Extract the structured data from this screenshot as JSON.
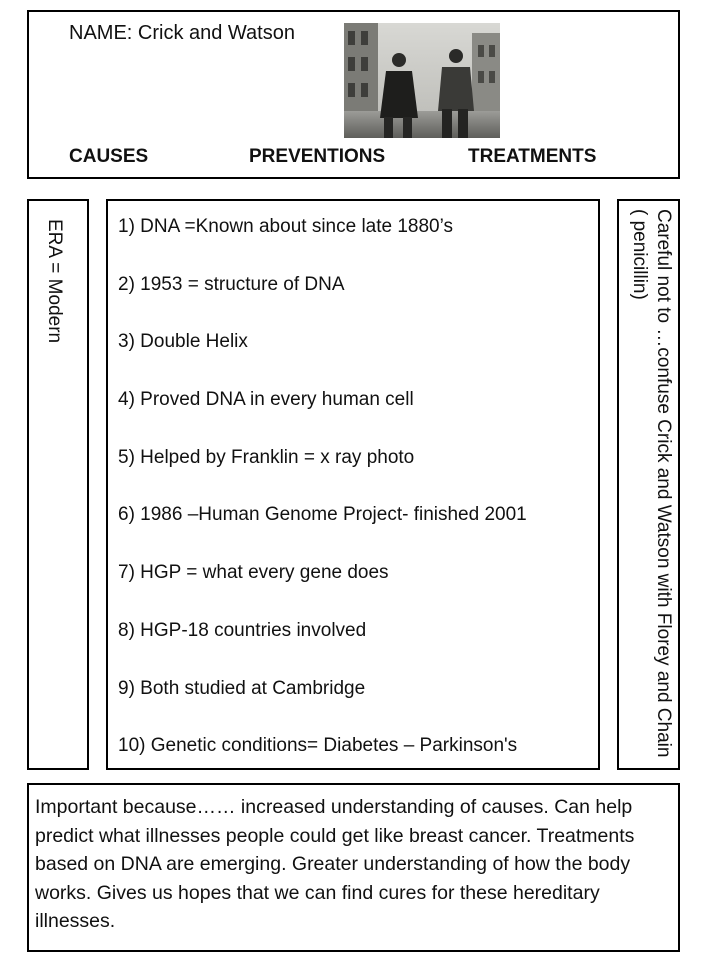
{
  "header": {
    "name": "NAME: Crick and Watson",
    "columns": [
      "CAUSES",
      "PREVENTIONS",
      "TREATMENTS"
    ]
  },
  "era": "ERA = Modern",
  "facts": [
    "1) DNA =Known about since late 1880’s",
    "2) 1953 = structure of DNA",
    "3)  Double  Helix",
    "4) Proved  DNA in every human cell",
    "5) Helped by Franklin = x ray photo",
    "6) 1986 –Human Genome Project- finished 2001",
    "7) HGP = what every gene does",
    "8) HGP-18 countries involved",
    "9) Both studied at Cambridge",
    "10) Genetic conditions= Diabetes – Parkinson's"
  ],
  "careful": "Careful not to …confuse Crick and Watson with Florey and Chain ( penicillin)",
  "important": "Important because…… increased understanding of causes. Can help predict what illnesses people could get like breast cancer. Treatments based on DNA are emerging. Greater understanding of how the body works. Gives us hopes that we can find cures for these hereditary illnesses."
}
